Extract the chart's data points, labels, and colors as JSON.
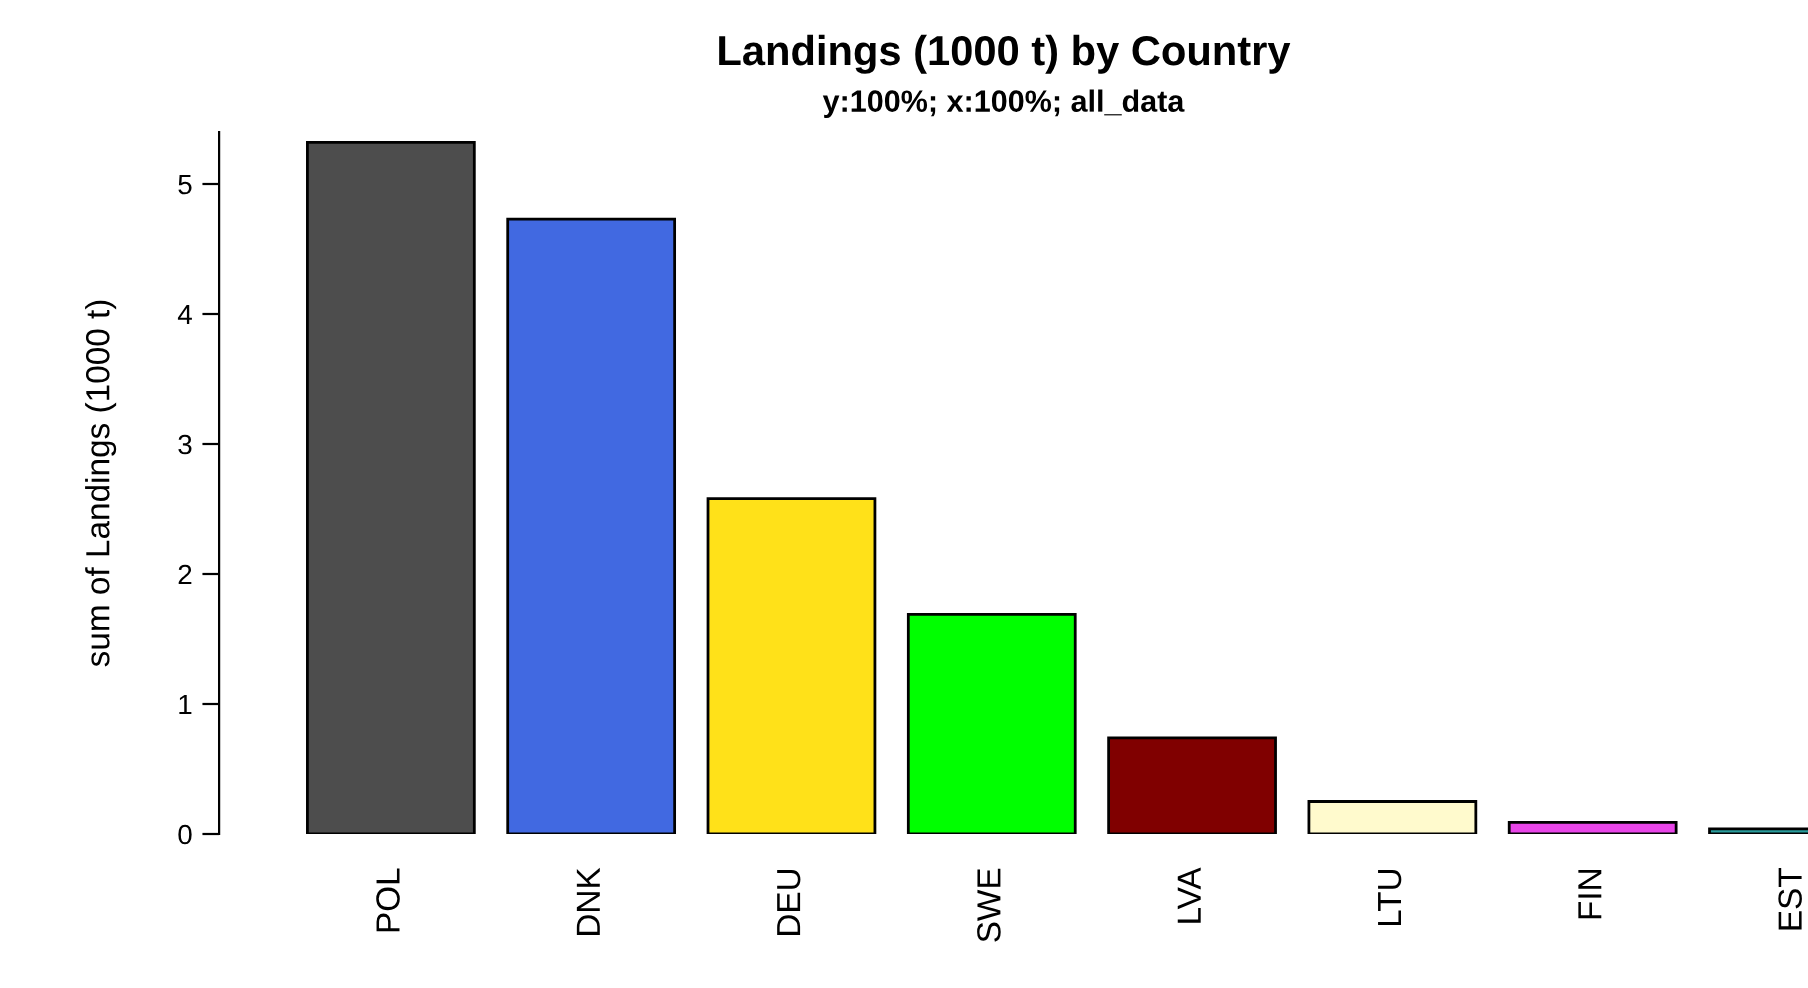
{
  "chart_data": {
    "type": "bar",
    "title": "Landings (1000 t) by Country",
    "subtitle": "y:100%; x:100%; all_data",
    "ylabel": "sum of Landings (1000 t)",
    "categories": [
      "POL",
      "DNK",
      "DEU",
      "SWE",
      "LVA",
      "LTU",
      "FIN",
      "EST"
    ],
    "values": [
      5.32,
      4.73,
      2.58,
      1.69,
      0.74,
      0.25,
      0.09,
      0.04
    ],
    "colors": [
      "#4d4d4d",
      "#4169e1",
      "#ffe119",
      "#00ff00",
      "#800000",
      "#fffacd",
      "#e845e8",
      "#2a9d9d"
    ],
    "ylim": [
      0,
      5.4
    ],
    "yticks": [
      0,
      1,
      2,
      3,
      4,
      5
    ],
    "grid": false,
    "legend": false
  }
}
